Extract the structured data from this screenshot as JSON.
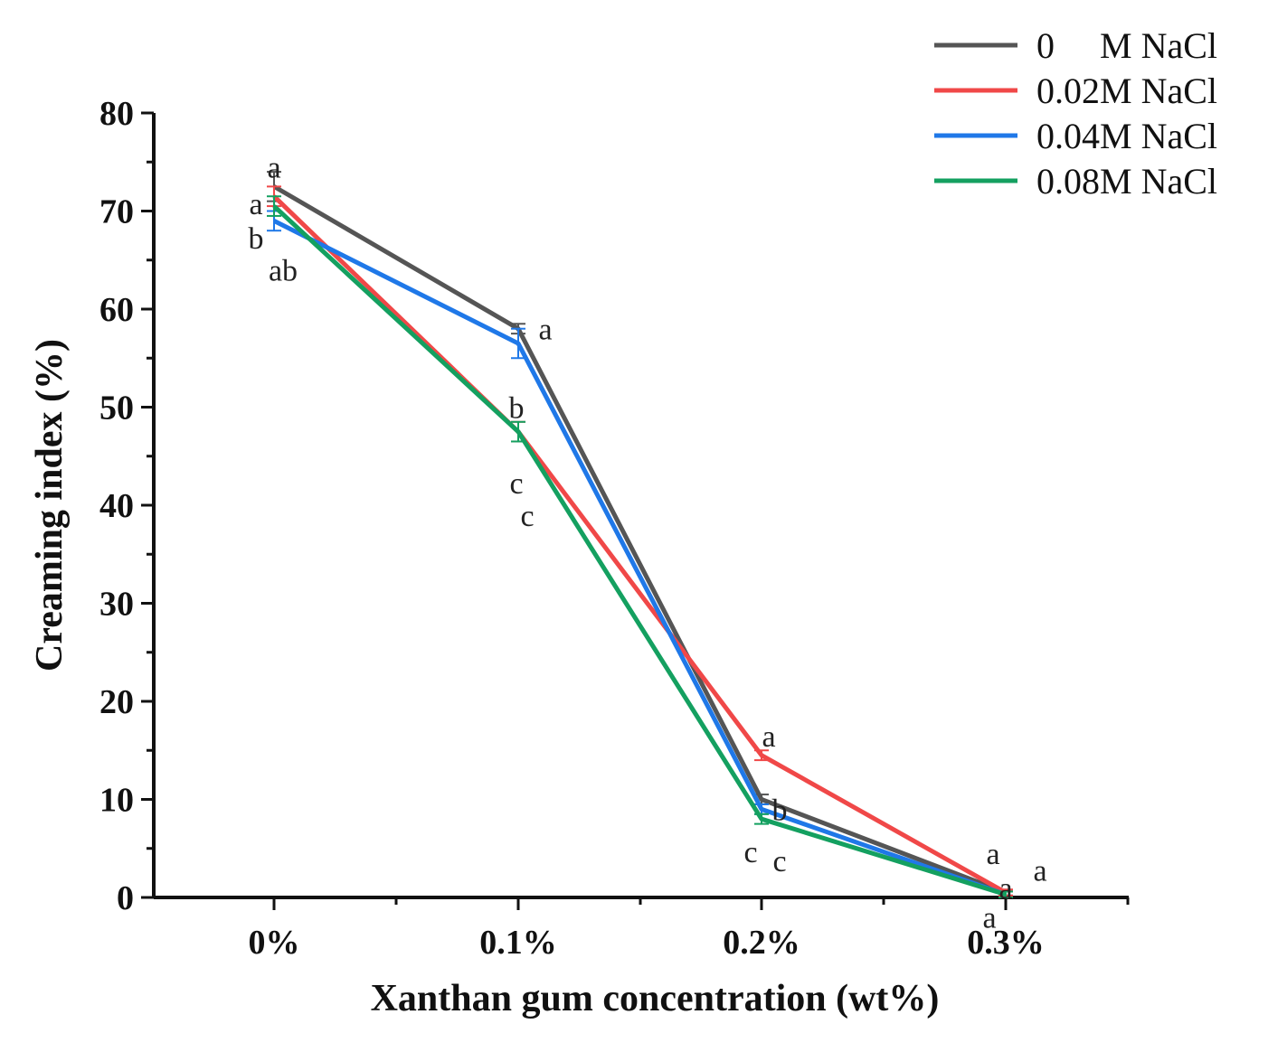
{
  "chart_data": {
    "type": "line",
    "title": "",
    "xlabel": "Xanthan gum  concentration (wt%)",
    "ylabel": "Creaming index (%)",
    "categories": [
      "0%",
      "0.1%",
      "0.2%",
      "0.3%"
    ],
    "ylim": [
      0,
      80
    ],
    "yticks": [
      "0",
      "10",
      "20",
      "30",
      "40",
      "50",
      "60",
      "70",
      "80"
    ],
    "grid": false,
    "legend_position": "top-right",
    "series": [
      {
        "name": "0     M NaCl",
        "color": "#555555",
        "values": [
          72.5,
          58.0,
          10.0,
          0.5
        ],
        "errors": [
          1.5,
          0.5,
          0.5,
          0.3
        ]
      },
      {
        "name": "0.02M NaCl",
        "color": "#f04848",
        "values": [
          71.5,
          47.5,
          14.5,
          0.5
        ],
        "errors": [
          1.0,
          1.0,
          0.5,
          0.3
        ]
      },
      {
        "name": "0.04M NaCl",
        "color": "#1f78e8",
        "values": [
          69.0,
          56.5,
          9.0,
          0.3
        ],
        "errors": [
          1.0,
          1.5,
          0.5,
          0.3
        ]
      },
      {
        "name": "0.08M NaCl",
        "color": "#14a060",
        "values": [
          70.5,
          47.5,
          8.0,
          0.3
        ],
        "errors": [
          1.0,
          1.0,
          0.5,
          0.3
        ]
      }
    ],
    "annotations": [
      {
        "text": "a",
        "category": 0,
        "y": 74.5
      },
      {
        "text": "a",
        "category": 0,
        "y": 70.8
      },
      {
        "text": "b",
        "category": 0,
        "y": 67.3
      },
      {
        "text": "ab",
        "category": 0,
        "y": 64.0
      },
      {
        "text": "a",
        "category": 1,
        "y": 58.0
      },
      {
        "text": "b",
        "category": 1,
        "y": 50.0
      },
      {
        "text": "c",
        "category": 1,
        "y": 42.3
      },
      {
        "text": "c",
        "category": 1,
        "y": 39.0
      },
      {
        "text": "a",
        "category": 2,
        "y": 16.5
      },
      {
        "text": "b",
        "category": 2,
        "y": 9.0
      },
      {
        "text": "c",
        "category": 2,
        "y": 4.7
      },
      {
        "text": "c",
        "category": 2,
        "y": 3.8
      },
      {
        "text": "a",
        "category": 3,
        "y": 4.5
      },
      {
        "text": "a",
        "category": 3,
        "y": 2.8
      },
      {
        "text": "a",
        "category": 3,
        "y": 1.0
      },
      {
        "text": "a",
        "category": 3,
        "y": -2.0
      }
    ]
  }
}
